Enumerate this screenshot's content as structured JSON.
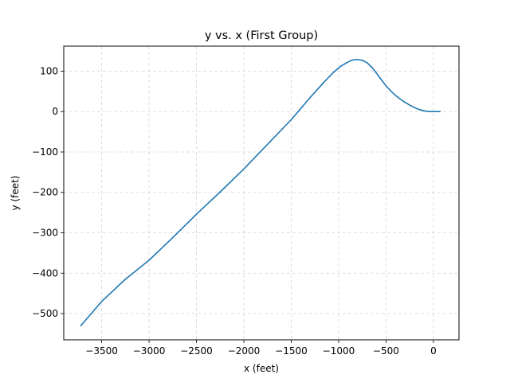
{
  "chart_data": {
    "type": "line",
    "title": "y vs. x (First Group)",
    "xlabel": "x (feet)",
    "ylabel": "y (feet)",
    "xlim": [
      -3900,
      270
    ],
    "ylim": [
      -565,
      162
    ],
    "grid": true,
    "xticks": [
      -3500,
      -3000,
      -2500,
      -2000,
      -1500,
      -1000,
      -500,
      0
    ],
    "xtick_labels": [
      "−3500",
      "−3000",
      "−2500",
      "−2000",
      "−1500",
      "−1000",
      "−500",
      "0"
    ],
    "yticks": [
      100,
      0,
      -100,
      -200,
      -300,
      -400,
      -500
    ],
    "ytick_labels": [
      "100",
      "0",
      "−100",
      "−200",
      "−300",
      "−400",
      "−500"
    ],
    "series": [
      {
        "color": "#1f77b4",
        "x": [
          -3720,
          -3500,
          -3250,
          -3000,
          -2750,
          -2500,
          -2250,
          -2000,
          -1750,
          -1500,
          -1300,
          -1150,
          -1050,
          -980,
          -900,
          -850,
          -800,
          -750,
          -700,
          -650,
          -600,
          -550,
          -500,
          -450,
          -400,
          -350,
          -300,
          -250,
          -200,
          -150,
          -100,
          -60,
          -30,
          0,
          30,
          70
        ],
        "y": [
          -530,
          -470,
          -415,
          -368,
          -312,
          -254,
          -199,
          -142,
          -81,
          -20,
          35,
          74,
          98,
          112,
          123,
          128,
          129,
          127,
          121,
          110,
          95,
          79,
          64,
          51,
          40,
          31,
          23,
          16,
          10,
          5,
          2,
          0.3,
          0,
          0,
          0,
          0
        ]
      }
    ]
  }
}
